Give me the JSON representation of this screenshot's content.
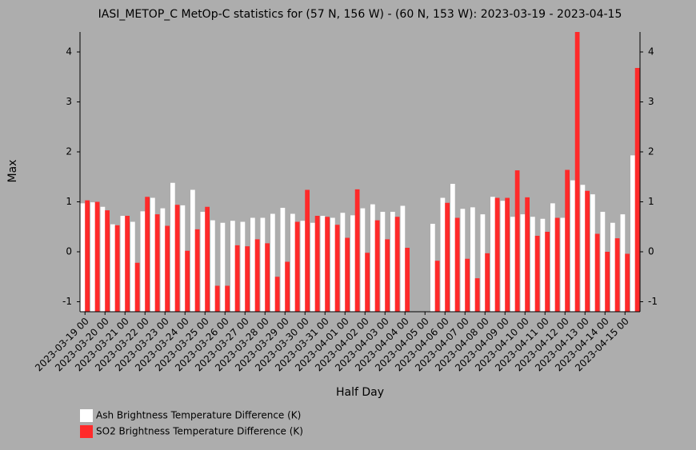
{
  "chart_data": {
    "type": "bar",
    "title": "IASI_METOP_C MetOp-C statistics for (57 N, 156 W) - (60 N, 153 W): 2023-03-19 - 2023-04-15",
    "x_label": "Half Day",
    "y_label": "Max",
    "categories": [
      "2023-03-19 00",
      null,
      "2023-03-20 00",
      null,
      "2023-03-21 00",
      null,
      "2023-03-22 00",
      null,
      "2023-03-23 00",
      null,
      "2023-03-24 00",
      null,
      "2023-03-25 00",
      null,
      "2023-03-26 00",
      null,
      "2023-03-27 00",
      null,
      "2023-03-28 00",
      null,
      "2023-03-29 00",
      null,
      "2023-03-30 00",
      null,
      "2023-03-31 00",
      null,
      "2023-04-01 00",
      null,
      "2023-04-02 00",
      null,
      "2023-04-03 00",
      null,
      "2023-04-04 00",
      null,
      "2023-04-05 00",
      null,
      "2023-04-06 00",
      null,
      "2023-04-07 00",
      null,
      "2023-04-08 00",
      null,
      "2023-04-09 00",
      null,
      "2023-04-10 00",
      null,
      "2023-04-11 00",
      null,
      "2023-04-12 00",
      null,
      "2023-04-13 00",
      null,
      "2023-04-14 00",
      null,
      "2023-04-15 00",
      null
    ],
    "series": [
      {
        "name": "Ash Brightness Temperature Difference (K)",
        "color": "#ffffff",
        "values": [
          0.97,
          0.99,
          0.9,
          0.55,
          0.72,
          0.6,
          0.81,
          1.08,
          0.87,
          1.38,
          0.93,
          1.24,
          0.8,
          0.63,
          0.58,
          0.62,
          0.6,
          0.68,
          0.68,
          0.76,
          0.88,
          0.76,
          0.62,
          0.58,
          0.72,
          0.68,
          0.78,
          0.73,
          0.87,
          0.95,
          0.8,
          0.8,
          0.92,
          null,
          null,
          0.56,
          1.08,
          1.36,
          0.86,
          0.89,
          0.75,
          1.1,
          1.02,
          0.7,
          0.75,
          0.7,
          0.66,
          0.97,
          0.68,
          1.43,
          1.34,
          1.15,
          0.8,
          0.58,
          0.75,
          1.93
        ]
      },
      {
        "name": "SO2 Brightness Temperature Difference (K)",
        "color": "#ff2a2a",
        "values": [
          1.03,
          1.0,
          0.83,
          0.53,
          0.72,
          -0.22,
          1.1,
          0.75,
          0.52,
          0.94,
          0.02,
          0.45,
          0.9,
          -0.68,
          -0.68,
          0.13,
          0.11,
          0.25,
          0.17,
          -0.5,
          -0.2,
          0.6,
          1.24,
          0.72,
          0.7,
          0.54,
          0.28,
          1.25,
          -0.02,
          0.63,
          0.25,
          0.7,
          0.08,
          null,
          null,
          -0.18,
          0.98,
          0.68,
          -0.14,
          -0.53,
          -0.03,
          1.08,
          1.08,
          1.63,
          1.09,
          0.32,
          0.4,
          0.68,
          1.64,
          4.4,
          1.22,
          0.36,
          0.0,
          0.27,
          -0.04,
          3.68
        ]
      }
    ],
    "ylim": [
      -1.2,
      4.4
    ],
    "yticks": [
      -1,
      0,
      1,
      2,
      3,
      4
    ],
    "grid": false
  }
}
